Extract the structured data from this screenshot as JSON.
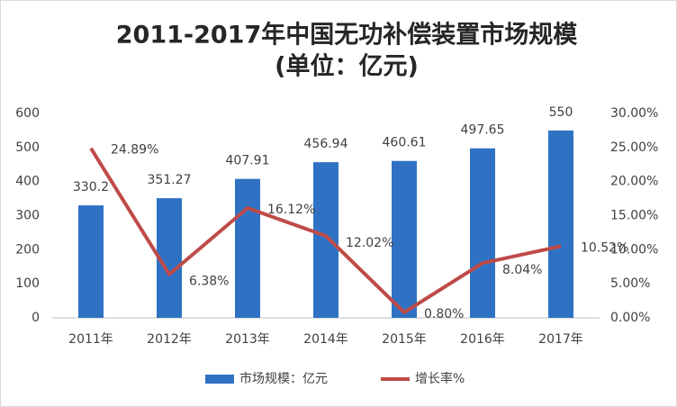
{
  "chart_data": {
    "type": "bar",
    "title": [
      "2011-2017年中国无功补偿装置市场规模",
      "(单位：亿元)"
    ],
    "categories": [
      "2011年",
      "2012年",
      "2013年",
      "2014年",
      "2015年",
      "2016年",
      "2017年"
    ],
    "series": [
      {
        "name": "市场规模：亿元",
        "color": "#2f72c4",
        "values": [
          330.2,
          351.27,
          407.91,
          456.94,
          460.61,
          497.65,
          550
        ]
      },
      {
        "name": "增长率%",
        "type": "line",
        "axis": "y2",
        "color": "#be4b48",
        "values": [
          24.89,
          6.38,
          16.12,
          12.02,
          0.8,
          8.04,
          10.52
        ],
        "value_labels": [
          "24.89%",
          "6.38%",
          "16.12%",
          "12.02%",
          "0.80%",
          "8.04%",
          "10.52%"
        ]
      }
    ],
    "ylim": [
      0,
      600
    ],
    "yticks": [
      0,
      100,
      200,
      300,
      400,
      500,
      600
    ],
    "y2lim": [
      0,
      30
    ],
    "y2ticks": [
      {
        "value": 0,
        "label": "0.00%"
      },
      {
        "value": 5,
        "label": "5.00%"
      },
      {
        "value": 10,
        "label": "10.00%"
      },
      {
        "value": 15,
        "label": "15.00%"
      },
      {
        "value": 20,
        "label": "20.00%"
      },
      {
        "value": 25,
        "label": "25.00%"
      },
      {
        "value": 30,
        "label": "30.00%"
      }
    ],
    "grid": false,
    "legend": "bottom"
  }
}
